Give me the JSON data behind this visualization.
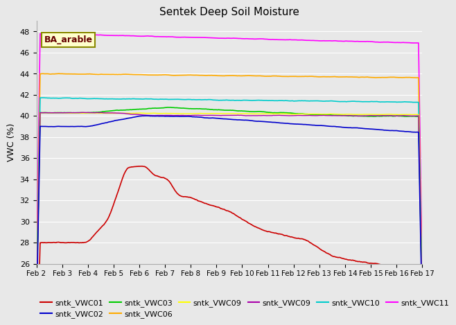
{
  "title": "Sentek Deep Soil Moisture",
  "ylabel": "VWC (%)",
  "ylim": [
    26,
    49
  ],
  "yticks": [
    26,
    28,
    30,
    32,
    34,
    36,
    38,
    40,
    42,
    44,
    46,
    48
  ],
  "plot_bg_color": "#e8e8e8",
  "fig_bg_color": "#e8e8e8",
  "annotation_text": "BA_arable",
  "x_tick_labels": [
    "Feb 2",
    "Feb 3",
    "Feb 4",
    "Feb 5",
    "Feb 6",
    "Feb 7",
    "Feb 8",
    "Feb 9",
    "Feb 10",
    "Feb 11",
    "Feb 12",
    "Feb 13",
    "Feb 14",
    "Feb 15",
    "Feb 16",
    "Feb 17"
  ],
  "n_days": 15,
  "legend_rows": [
    [
      {
        "color": "#cc0000",
        "label": "sntk_VWC01"
      },
      {
        "color": "#0000cc",
        "label": "sntk_VWC02"
      },
      {
        "color": "#00cc00",
        "label": "sntk_VWC03"
      },
      {
        "color": "#ffaa00",
        "label": "sntk_VWC06"
      },
      {
        "color": "#ffff00",
        "label": "sntk_VWC09"
      },
      {
        "color": "#aa00aa",
        "label": "sntk_VWC09"
      }
    ],
    [
      {
        "color": "#00cccc",
        "label": "sntk_VWC10"
      },
      {
        "color": "#ff00ff",
        "label": "sntk_VWC11"
      }
    ]
  ]
}
